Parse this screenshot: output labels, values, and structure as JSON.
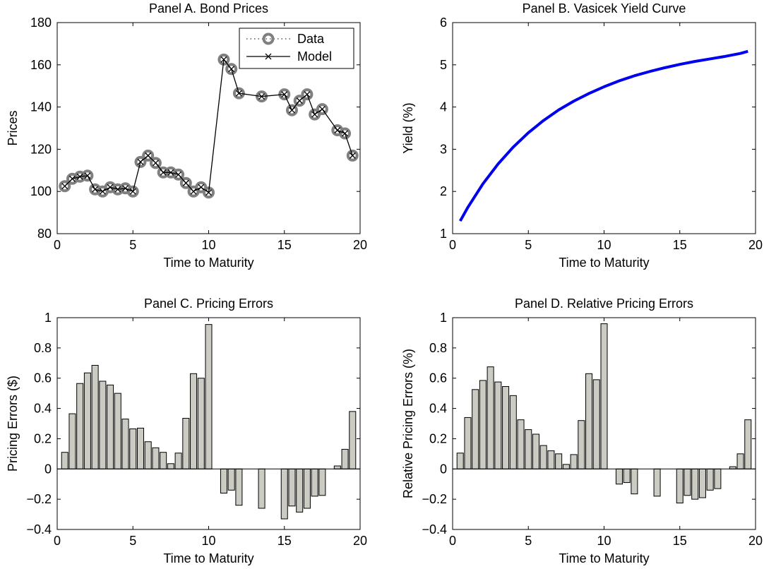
{
  "chart_data": [
    {
      "type": "line",
      "title": "Panel A. Bond Prices",
      "xlabel": "Time to Maturity",
      "ylabel": "Prices",
      "xlim": [
        0,
        20
      ],
      "ylim": [
        80,
        180
      ],
      "xticks": [
        "0",
        "5",
        "10",
        "15",
        "20"
      ],
      "yticks": [
        "80",
        "100",
        "120",
        "140",
        "160",
        "180"
      ],
      "legend_position": "top-right",
      "x": [
        0.5,
        1.0,
        1.5,
        2.0,
        2.5,
        3.0,
        3.5,
        4.0,
        4.5,
        5.0,
        5.5,
        6.0,
        6.5,
        7.0,
        7.5,
        8.0,
        8.5,
        9.0,
        9.5,
        10.0,
        11.0,
        11.5,
        12.0,
        13.5,
        15.0,
        15.5,
        16.0,
        16.5,
        17.0,
        17.5,
        18.5,
        19.0,
        19.5
      ],
      "series": [
        {
          "name": "Data",
          "color": "#808080",
          "values": [
            102.5,
            106,
            107,
            107.5,
            101,
            100,
            102,
            101,
            101.5,
            100,
            114,
            117,
            113.5,
            109,
            109,
            108,
            104,
            100,
            102,
            99.5,
            162.5,
            158,
            146.5,
            145,
            146,
            138.5,
            143,
            146,
            136.5,
            139,
            129,
            127.5,
            117
          ]
        },
        {
          "name": "Model",
          "color": "#000000",
          "values": [
            102.5,
            106,
            107,
            107.5,
            101,
            100,
            102,
            101,
            101.5,
            100,
            114,
            117,
            113.5,
            109,
            109,
            108,
            104,
            100,
            102,
            99.5,
            162.5,
            158,
            146.5,
            145,
            146,
            138.5,
            143,
            146,
            136.5,
            139,
            129,
            127.5,
            117
          ]
        }
      ]
    },
    {
      "type": "line",
      "title": "Panel B. Vasicek Yield Curve",
      "xlabel": "Time to Maturity",
      "ylabel": "Yield (%)",
      "xlim": [
        0,
        20
      ],
      "ylim": [
        1,
        6
      ],
      "xticks": [
        "0",
        "5",
        "10",
        "15",
        "20"
      ],
      "yticks": [
        "1",
        "2",
        "3",
        "4",
        "5",
        "6"
      ],
      "x": [
        0.5,
        1,
        2,
        3,
        4,
        5,
        6,
        7,
        8,
        9,
        10,
        11,
        12,
        13,
        14,
        15,
        16,
        17,
        18,
        19,
        19.5
      ],
      "series": [
        {
          "color": "#0000ee",
          "values": [
            1.3,
            1.62,
            2.18,
            2.65,
            3.05,
            3.39,
            3.68,
            3.93,
            4.14,
            4.32,
            4.48,
            4.62,
            4.74,
            4.84,
            4.93,
            5.01,
            5.08,
            5.14,
            5.2,
            5.27,
            5.32
          ]
        }
      ]
    },
    {
      "type": "bar",
      "title": "Panel C. Pricing Errors",
      "xlabel": "Time to Maturity",
      "ylabel": "Pricing Errors ($)",
      "xlim": [
        0,
        20
      ],
      "ylim": [
        -0.4,
        1
      ],
      "xticks": [
        "0",
        "5",
        "10",
        "15",
        "20"
      ],
      "yticks": [
        "−0.4",
        "−0.2",
        "0",
        "0.2",
        "0.4",
        "0.6",
        "0.8",
        "1"
      ],
      "bar_color": "#cbcbc4",
      "x": [
        0.5,
        1.0,
        1.5,
        2.0,
        2.5,
        3.0,
        3.5,
        4.0,
        4.5,
        5.0,
        5.5,
        6.0,
        6.5,
        7.0,
        7.5,
        8.0,
        8.5,
        9.0,
        9.5,
        10.0,
        11.0,
        11.5,
        12.0,
        13.5,
        15.0,
        15.5,
        16.0,
        16.5,
        17.0,
        17.5,
        18.5,
        19.0,
        19.5
      ],
      "values": [
        0.11,
        0.365,
        0.565,
        0.635,
        0.685,
        0.58,
        0.555,
        0.5,
        0.33,
        0.265,
        0.27,
        0.18,
        0.14,
        0.11,
        0.035,
        0.105,
        0.335,
        0.63,
        0.6,
        0.955,
        -0.16,
        -0.14,
        -0.24,
        -0.26,
        -0.33,
        -0.245,
        -0.285,
        -0.26,
        -0.18,
        -0.175,
        0.02,
        0.13,
        0.38
      ]
    },
    {
      "type": "bar",
      "title": "Panel D. Relative Pricing Errors",
      "xlabel": "Time to Maturity",
      "ylabel": "Relative Pricing Errors (%)",
      "xlim": [
        0,
        20
      ],
      "ylim": [
        -0.4,
        1
      ],
      "xticks": [
        "0",
        "5",
        "10",
        "15",
        "20"
      ],
      "yticks": [
        "−0.4",
        "−0.2",
        "0",
        "0.2",
        "0.4",
        "0.6",
        "0.8",
        "1"
      ],
      "bar_color": "#cbcbc4",
      "x": [
        0.5,
        1.0,
        1.5,
        2.0,
        2.5,
        3.0,
        3.5,
        4.0,
        4.5,
        5.0,
        5.5,
        6.0,
        6.5,
        7.0,
        7.5,
        8.0,
        8.5,
        9.0,
        9.5,
        10.0,
        11.0,
        11.5,
        12.0,
        13.5,
        15.0,
        15.5,
        16.0,
        16.5,
        17.0,
        17.5,
        18.5,
        19.0,
        19.5
      ],
      "values": [
        0.105,
        0.34,
        0.525,
        0.585,
        0.675,
        0.575,
        0.545,
        0.485,
        0.325,
        0.26,
        0.23,
        0.155,
        0.12,
        0.1,
        0.03,
        0.095,
        0.32,
        0.63,
        0.59,
        0.96,
        -0.1,
        -0.09,
        -0.165,
        -0.18,
        -0.225,
        -0.175,
        -0.2,
        -0.19,
        -0.14,
        -0.13,
        0.015,
        0.1,
        0.325
      ]
    }
  ]
}
